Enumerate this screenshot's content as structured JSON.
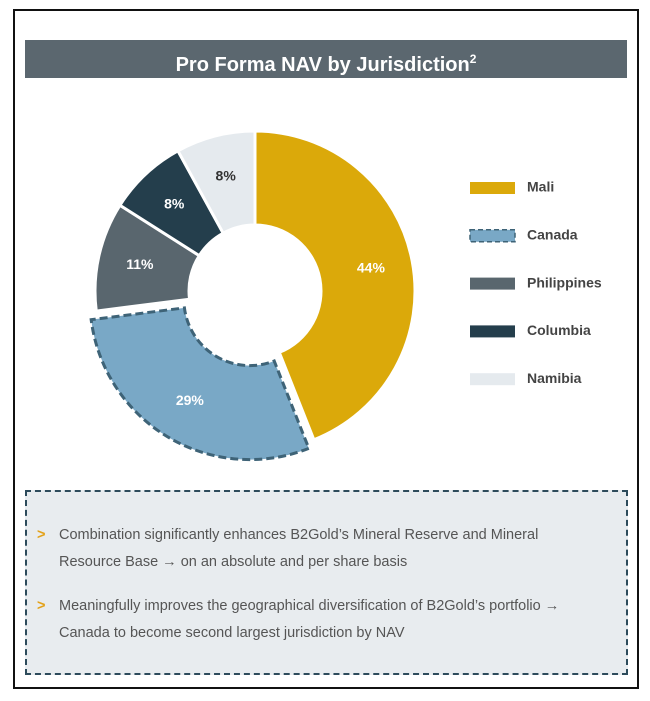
{
  "chart_data": {
    "type": "donut",
    "title": "Pro Forma NAV by Jurisdiction",
    "title_superscript": "2",
    "categories": [
      "Mali",
      "Canada",
      "Philippines",
      "Columbia",
      "Namibia"
    ],
    "values": [
      44,
      29,
      11,
      8,
      8
    ],
    "value_labels": [
      "44%",
      "29%",
      "11%",
      "8%",
      "8%"
    ],
    "colors": [
      "#dba90a",
      "#79a8c6",
      "#59666e",
      "#243e4c",
      "#e5eaee"
    ],
    "exploded": [
      "Canada"
    ],
    "legend": "right"
  },
  "notes": {
    "marker": ">",
    "items": [
      "Combination significantly enhances B2Gold’s Mineral Reserve and Mineral Resource Base → on an absolute and per share basis",
      "Meaningfully improves the geographical diversification of B2Gold’s portfolio → Canada to become second largest jurisdiction by NAV"
    ]
  }
}
